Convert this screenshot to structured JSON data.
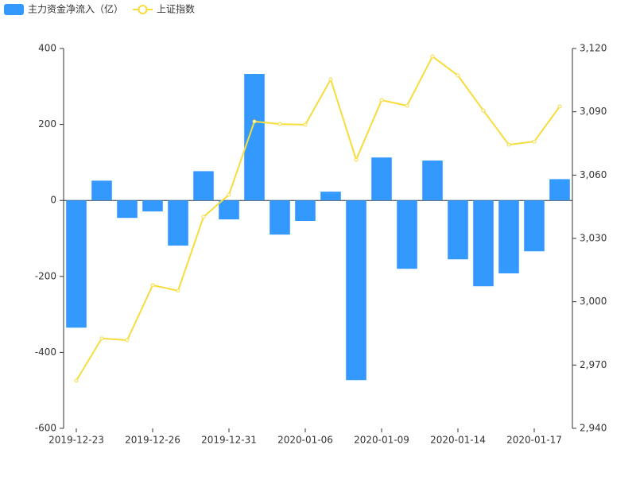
{
  "chart_data": {
    "type": "bar-line",
    "categories": [
      "2019-12-23",
      null,
      null,
      "2019-12-26",
      null,
      null,
      "2019-12-31",
      null,
      null,
      "2020-01-06",
      null,
      null,
      "2020-01-09",
      null,
      null,
      "2020-01-14",
      null,
      null,
      "2020-01-17",
      null
    ],
    "series": [
      {
        "name": "主力资金净流入（亿）",
        "type": "bar",
        "color": "#3399ff",
        "values": [
          -335,
          52,
          -46,
          -29,
          -119,
          77,
          -50,
          333,
          -90,
          -54,
          23,
          -473,
          113,
          -180,
          105,
          -155,
          -226,
          -192,
          -134,
          56
        ]
      },
      {
        "name": "上证指数",
        "type": "line",
        "axis": "y2",
        "color": "#f7dc3c",
        "values": [
          2962.6,
          2982.6,
          2981.8,
          3007.8,
          3005.2,
          3040.2,
          3050.7,
          3085.4,
          3084.2,
          3083.9,
          3105.3,
          3067.3,
          3095.5,
          3092.9,
          3116.2,
          3107.2,
          3090.6,
          3074.4,
          3075.9,
          3092.5
        ]
      }
    ],
    "ylim": [
      -600,
      400
    ],
    "yticks": [
      -600,
      -400,
      -200,
      0,
      200,
      400
    ],
    "y2lim": [
      2940,
      3120
    ],
    "y2ticks": [
      {
        "value": 2940,
        "label": "2,940"
      },
      {
        "value": 2970,
        "label": "2,970"
      },
      {
        "value": 3000,
        "label": "3,000"
      },
      {
        "value": 3030,
        "label": "3,030"
      },
      {
        "value": 3060,
        "label": "3,060"
      },
      {
        "value": 3090,
        "label": "3,090"
      },
      {
        "value": 3120,
        "label": "3,120"
      }
    ],
    "legend": "top-left",
    "grid": false
  }
}
